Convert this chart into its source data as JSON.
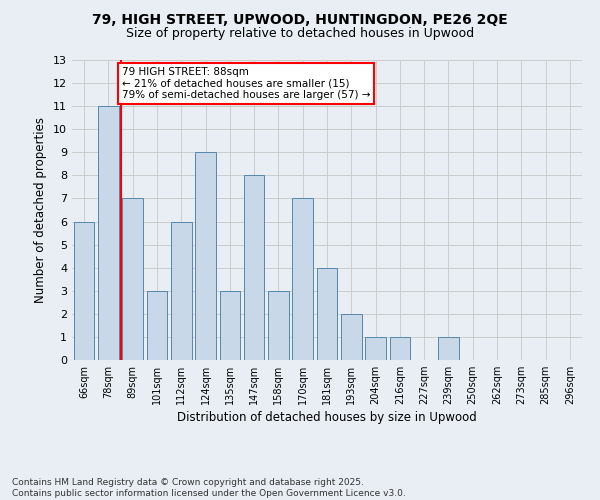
{
  "title": "79, HIGH STREET, UPWOOD, HUNTINGDON, PE26 2QE",
  "subtitle": "Size of property relative to detached houses in Upwood",
  "xlabel": "Distribution of detached houses by size in Upwood",
  "ylabel": "Number of detached properties",
  "footer_line1": "Contains HM Land Registry data © Crown copyright and database right 2025.",
  "footer_line2": "Contains public sector information licensed under the Open Government Licence v3.0.",
  "categories": [
    "66sqm",
    "78sqm",
    "89sqm",
    "101sqm",
    "112sqm",
    "124sqm",
    "135sqm",
    "147sqm",
    "158sqm",
    "170sqm",
    "181sqm",
    "193sqm",
    "204sqm",
    "216sqm",
    "227sqm",
    "239sqm",
    "250sqm",
    "262sqm",
    "273sqm",
    "285sqm",
    "296sqm"
  ],
  "values": [
    6,
    11,
    7,
    3,
    6,
    9,
    3,
    8,
    3,
    7,
    4,
    2,
    1,
    1,
    0,
    1,
    0,
    0,
    0,
    0,
    0
  ],
  "bar_color": "#c8d8e8",
  "bar_edge_color": "#5588aa",
  "grid_color": "#cccccc",
  "background_color": "#e8eef4",
  "red_line_index": 2,
  "annotation_text": "79 HIGH STREET: 88sqm\n← 21% of detached houses are smaller (15)\n79% of semi-detached houses are larger (57) →",
  "annotation_box_color": "white",
  "annotation_box_edge": "red",
  "ylim": [
    0,
    13
  ],
  "yticks": [
    0,
    1,
    2,
    3,
    4,
    5,
    6,
    7,
    8,
    9,
    10,
    11,
    12,
    13
  ]
}
